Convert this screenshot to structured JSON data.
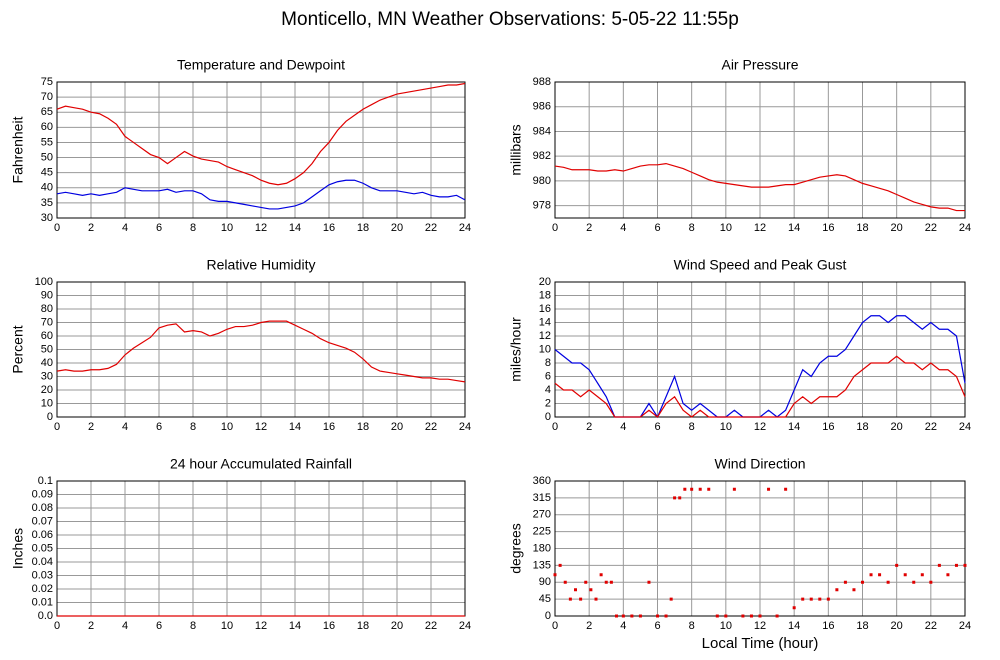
{
  "title": "Monticello, MN Weather Observations: 5-05-22 11:55p",
  "chart_data": [
    {
      "type": "line",
      "title": "Temperature and Dewpoint",
      "ylabel": "Fahrenheit",
      "grid": true,
      "x": [
        0,
        0.5,
        1,
        1.5,
        2,
        2.5,
        3,
        3.5,
        4,
        4.5,
        5,
        5.5,
        6,
        6.5,
        7,
        7.5,
        8,
        8.5,
        9,
        9.5,
        10,
        10.5,
        11,
        11.5,
        12,
        12.5,
        13,
        13.5,
        14,
        14.5,
        15,
        15.5,
        16,
        16.5,
        17,
        17.5,
        18,
        18.5,
        19,
        19.5,
        20,
        20.5,
        21,
        21.5,
        22,
        22.5,
        23,
        23.5,
        24
      ],
      "series": [
        {
          "color": "#e00000",
          "values": [
            66,
            67,
            66.5,
            66,
            65,
            64.5,
            63,
            61,
            57,
            55,
            53,
            51,
            50,
            48,
            50,
            52,
            50.5,
            49.5,
            49,
            48.5,
            47,
            46,
            45,
            44,
            42.5,
            41.5,
            41,
            41.5,
            43,
            45,
            48,
            52,
            55,
            59,
            62,
            64,
            66,
            67.5,
            69,
            70,
            71,
            71.5,
            72,
            72.5,
            73,
            73.5,
            74,
            74,
            74.5
          ]
        },
        {
          "color": "#0000e0",
          "values": [
            38,
            38.5,
            38,
            37.5,
            38,
            37.5,
            38,
            38.5,
            40,
            39.5,
            39,
            39,
            39,
            39.5,
            38.5,
            39,
            39,
            38,
            36,
            35.5,
            35.5,
            35,
            34.5,
            34,
            33.5,
            33,
            33,
            33.5,
            34,
            35,
            37,
            39,
            41,
            42,
            42.5,
            42.5,
            41.5,
            40,
            39,
            39,
            39,
            38.5,
            38,
            38.5,
            37.5,
            37,
            37,
            37.5,
            36
          ]
        }
      ],
      "xlim": [
        0,
        24
      ],
      "xticks": [
        0,
        2,
        4,
        6,
        8,
        10,
        12,
        14,
        16,
        18,
        20,
        22,
        24
      ],
      "ylim": [
        30,
        75
      ],
      "yticks": [
        30,
        35,
        40,
        45,
        50,
        55,
        60,
        65,
        70,
        75
      ]
    },
    {
      "type": "line",
      "title": "Air Pressure",
      "ylabel": "millibars",
      "grid": true,
      "x": [
        0,
        0.5,
        1,
        1.5,
        2,
        2.5,
        3,
        3.5,
        4,
        4.5,
        5,
        5.5,
        6,
        6.5,
        7,
        7.5,
        8,
        8.5,
        9,
        9.5,
        10,
        10.5,
        11,
        11.5,
        12,
        12.5,
        13,
        13.5,
        14,
        14.5,
        15,
        15.5,
        16,
        16.5,
        17,
        17.5,
        18,
        18.5,
        19,
        19.5,
        20,
        20.5,
        21,
        21.5,
        22,
        22.5,
        23,
        23.5,
        24
      ],
      "series": [
        {
          "color": "#e00000",
          "values": [
            981.2,
            981.1,
            980.9,
            980.9,
            980.9,
            980.8,
            980.8,
            980.9,
            980.8,
            981,
            981.2,
            981.3,
            981.3,
            981.4,
            981.2,
            981,
            980.7,
            980.4,
            980.1,
            979.9,
            979.8,
            979.7,
            979.6,
            979.5,
            979.5,
            979.5,
            979.6,
            979.7,
            979.7,
            979.9,
            980.1,
            980.3,
            980.4,
            980.5,
            980.4,
            980.1,
            979.8,
            979.6,
            979.4,
            979.2,
            978.9,
            978.6,
            978.3,
            978.1,
            977.9,
            977.8,
            977.8,
            977.6,
            977.6
          ]
        }
      ],
      "xlim": [
        0,
        24
      ],
      "xticks": [
        0,
        2,
        4,
        6,
        8,
        10,
        12,
        14,
        16,
        18,
        20,
        22,
        24
      ],
      "ylim": [
        977,
        988
      ],
      "yticks": [
        978,
        980,
        982,
        984,
        986,
        988
      ]
    },
    {
      "type": "line",
      "title": "Relative Humidity",
      "ylabel": "Percent",
      "grid": true,
      "x": [
        0,
        0.5,
        1,
        1.5,
        2,
        2.5,
        3,
        3.5,
        4,
        4.5,
        5,
        5.5,
        6,
        6.5,
        7,
        7.5,
        8,
        8.5,
        9,
        9.5,
        10,
        10.5,
        11,
        11.5,
        12,
        12.5,
        13,
        13.5,
        14,
        14.5,
        15,
        15.5,
        16,
        16.5,
        17,
        17.5,
        18,
        18.5,
        19,
        19.5,
        20,
        20.5,
        21,
        21.5,
        22,
        22.5,
        23,
        23.5,
        24
      ],
      "series": [
        {
          "color": "#e00000",
          "values": [
            34,
            35,
            34,
            34,
            35,
            35,
            36,
            39,
            46,
            51,
            55,
            59,
            66,
            68,
            69,
            63,
            64,
            63,
            60,
            62,
            65,
            67,
            67,
            68,
            70,
            71,
            71,
            71,
            68,
            65,
            62,
            58,
            55,
            53,
            51,
            48,
            43,
            37,
            34,
            33,
            32,
            31,
            30,
            29,
            29,
            28,
            28,
            27,
            26
          ]
        }
      ],
      "xlim": [
        0,
        24
      ],
      "xticks": [
        0,
        2,
        4,
        6,
        8,
        10,
        12,
        14,
        16,
        18,
        20,
        22,
        24
      ],
      "ylim": [
        0,
        100
      ],
      "yticks": [
        0,
        10,
        20,
        30,
        40,
        50,
        60,
        70,
        80,
        90,
        100
      ]
    },
    {
      "type": "line",
      "title": "Wind Speed and Peak Gust",
      "ylabel": "miles/hour",
      "grid": true,
      "x": [
        0,
        0.5,
        1,
        1.5,
        2,
        2.5,
        3,
        3.5,
        4,
        4.5,
        5,
        5.5,
        6,
        6.5,
        7,
        7.5,
        8,
        8.5,
        9,
        9.5,
        10,
        10.5,
        11,
        11.5,
        12,
        12.5,
        13,
        13.5,
        14,
        14.5,
        15,
        15.5,
        16,
        16.5,
        17,
        17.5,
        18,
        18.5,
        19,
        19.5,
        20,
        20.5,
        21,
        21.5,
        22,
        22.5,
        23,
        23.5,
        24
      ],
      "series": [
        {
          "color": "#0000e0",
          "values": [
            10,
            9,
            8,
            8,
            7,
            5,
            3,
            0,
            0,
            0,
            0,
            2,
            0,
            3,
            6,
            2,
            1,
            2,
            1,
            0,
            0,
            1,
            0,
            0,
            0,
            1,
            0,
            1,
            4,
            7,
            6,
            8,
            9,
            9,
            10,
            12,
            14,
            15,
            15,
            14,
            15,
            15,
            14,
            13,
            14,
            13,
            13,
            12,
            5
          ]
        },
        {
          "color": "#e00000",
          "values": [
            5,
            4,
            4,
            3,
            4,
            3,
            2,
            0,
            0,
            0,
            0,
            1,
            0,
            2,
            3,
            1,
            0,
            1,
            0,
            0,
            0,
            0,
            0,
            0,
            0,
            0,
            0,
            0,
            2,
            3,
            2,
            3,
            3,
            3,
            4,
            6,
            7,
            8,
            8,
            8,
            9,
            8,
            8,
            7,
            8,
            7,
            7,
            6,
            3
          ]
        }
      ],
      "xlim": [
        0,
        24
      ],
      "xticks": [
        0,
        2,
        4,
        6,
        8,
        10,
        12,
        14,
        16,
        18,
        20,
        22,
        24
      ],
      "ylim": [
        0,
        20
      ],
      "yticks": [
        0,
        2,
        4,
        6,
        8,
        10,
        12,
        14,
        16,
        18,
        20
      ]
    },
    {
      "type": "line",
      "title": "24 hour Accumulated Rainfall",
      "ylabel": "Inches",
      "grid": true,
      "x": [
        0,
        24
      ],
      "series": [
        {
          "color": "#e00000",
          "values": [
            0,
            0
          ]
        }
      ],
      "xlim": [
        0,
        24
      ],
      "xticks": [
        0,
        2,
        4,
        6,
        8,
        10,
        12,
        14,
        16,
        18,
        20,
        22,
        24
      ],
      "ylim": [
        0,
        0.1
      ],
      "yticks": [
        {
          "value": 0,
          "label": "0.0"
        },
        0.01,
        0.02,
        0.03,
        0.04,
        0.05,
        0.06,
        0.07,
        0.08,
        0.09,
        0.1
      ]
    },
    {
      "type": "scatter",
      "title": "Wind Direction",
      "ylabel": "degrees",
      "xlabel": "Local Time (hour)",
      "grid": true,
      "x": [
        0,
        0.3,
        0.6,
        0.9,
        1.2,
        1.5,
        1.8,
        2.1,
        2.4,
        2.7,
        3.0,
        3.3,
        3.6,
        4.0,
        4.5,
        5.0,
        5.5,
        6.0,
        6.5,
        6.8,
        7.0,
        7.3,
        7.6,
        8.0,
        8.5,
        9.0,
        9.5,
        10.0,
        10.5,
        11.0,
        11.5,
        12.0,
        12.5,
        13.0,
        13.5,
        14.0,
        14.5,
        15.0,
        15.5,
        16.0,
        16.5,
        17.0,
        17.5,
        18.0,
        18.5,
        19.0,
        19.5,
        20.0,
        20.5,
        21.0,
        21.5,
        22.0,
        22.5,
        23.0,
        23.5,
        24.0
      ],
      "series": [
        {
          "color": "#e00000",
          "values": [
            110,
            135,
            90,
            45,
            70,
            45,
            90,
            70,
            45,
            110,
            90,
            90,
            0,
            0,
            0,
            0,
            90,
            0,
            0,
            45,
            315,
            315,
            338,
            338,
            338,
            338,
            0,
            0,
            338,
            0,
            0,
            0,
            338,
            0,
            338,
            22,
            45,
            45,
            45,
            45,
            70,
            90,
            70,
            90,
            110,
            110,
            90,
            135,
            110,
            90,
            110,
            90,
            135,
            110,
            135,
            135
          ]
        }
      ],
      "xlim": [
        0,
        24
      ],
      "xticks": [
        0,
        2,
        4,
        6,
        8,
        10,
        12,
        14,
        16,
        18,
        20,
        22,
        24
      ],
      "ylim": [
        0,
        360
      ],
      "yticks": [
        0,
        45,
        90,
        135,
        180,
        225,
        270,
        315,
        360
      ]
    }
  ]
}
